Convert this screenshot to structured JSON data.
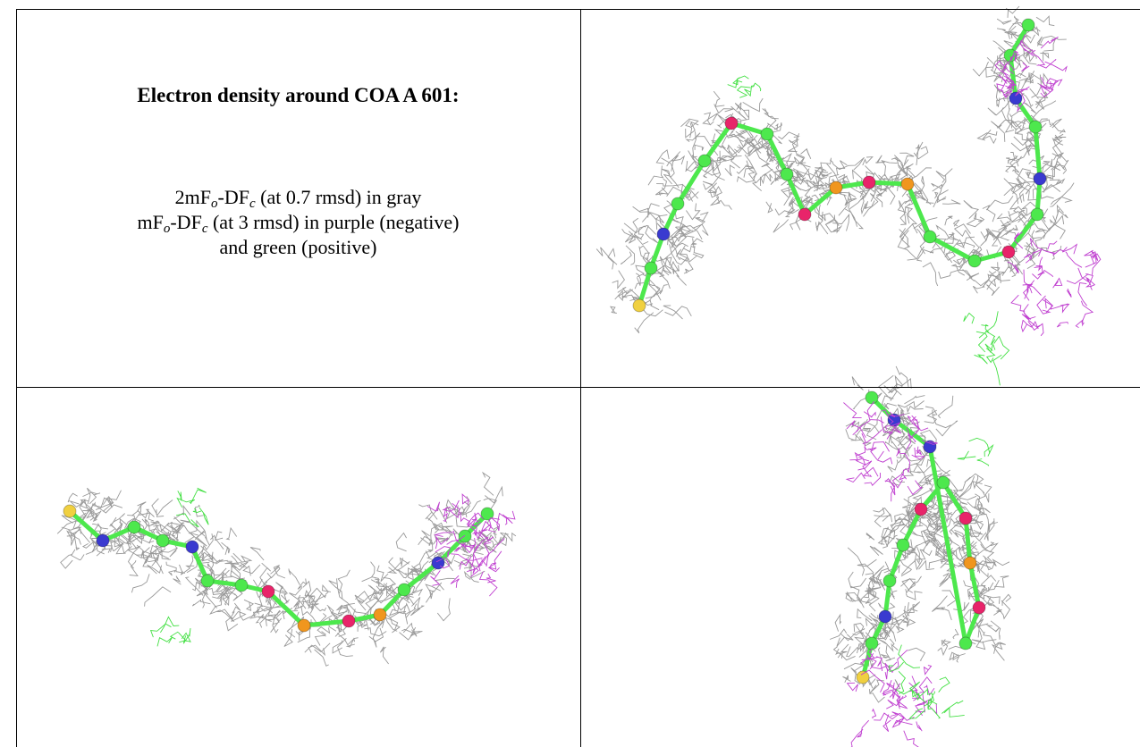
{
  "panel": {
    "title": "Electron density around COA A 601:",
    "lines": [
      [
        "2mF",
        "o",
        "-DF",
        "c",
        " (at 0.7 rmsd) in gray"
      ],
      [
        "mF",
        "o",
        "-DF",
        "c",
        " (at 3 rmsd) in purple (negative)"
      ],
      [
        "and green (positive)"
      ]
    ]
  }
}
